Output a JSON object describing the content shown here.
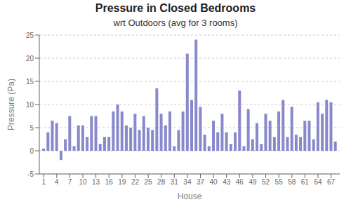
{
  "chart_data": {
    "type": "bar",
    "title": "Pressure in Closed Bedrooms",
    "subtitle": "wrt Outdoors (avg for 3 rooms)",
    "xlabel": "House",
    "ylabel": "Pressure (Pa)",
    "x": [
      1,
      2,
      3,
      4,
      5,
      6,
      7,
      8,
      9,
      10,
      11,
      12,
      13,
      14,
      15,
      16,
      17,
      18,
      19,
      20,
      21,
      22,
      23,
      24,
      25,
      26,
      27,
      28,
      29,
      30,
      31,
      32,
      33,
      34,
      35,
      36,
      37,
      38,
      39,
      40,
      41,
      42,
      43,
      44,
      45,
      46,
      47,
      48,
      49,
      50,
      51,
      52,
      53,
      54,
      55,
      56,
      57,
      58,
      59,
      60,
      61,
      62,
      63,
      64,
      65,
      66,
      67,
      68
    ],
    "values": [
      0.5,
      4.0,
      6.5,
      6.0,
      -2.0,
      2.5,
      7.5,
      1.0,
      5.5,
      5.5,
      3.0,
      7.5,
      7.5,
      1.5,
      3.0,
      3.0,
      8.5,
      10.0,
      8.5,
      5.5,
      5.0,
      8.0,
      4.5,
      7.5,
      5.0,
      4.5,
      13.5,
      8.0,
      5.5,
      8.5,
      1.0,
      4.5,
      8.5,
      21.0,
      11.0,
      24.0,
      9.5,
      3.5,
      1.0,
      6.5,
      4.0,
      8.0,
      4.0,
      1.5,
      4.0,
      13.0,
      1.0,
      9.0,
      2.5,
      6.0,
      1.5,
      8.0,
      6.5,
      3.0,
      8.5,
      11.0,
      3.0,
      9.5,
      3.5,
      3.0,
      6.5,
      6.5,
      2.5,
      10.5,
      8.0,
      11.0,
      10.5,
      2.0
    ],
    "xlim": [
      0,
      69
    ],
    "xticks": [
      1,
      4,
      7,
      10,
      13,
      16,
      19,
      22,
      25,
      28,
      31,
      34,
      37,
      40,
      43,
      46,
      49,
      52,
      55,
      58,
      61,
      64,
      67
    ],
    "ylim": [
      -5,
      25
    ],
    "yticks": [
      -5,
      0,
      5,
      10,
      15,
      20,
      25
    ],
    "color": "#8888cc",
    "grid": true
  }
}
